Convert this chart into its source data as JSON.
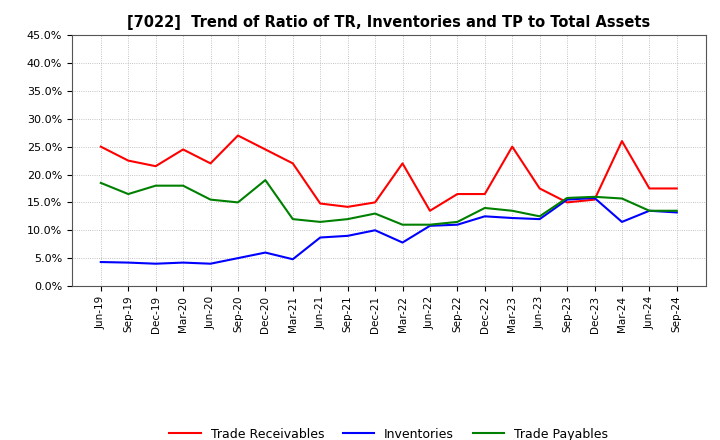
{
  "title": "[7022]  Trend of Ratio of TR, Inventories and TP to Total Assets",
  "x_labels": [
    "Jun-19",
    "Sep-19",
    "Dec-19",
    "Mar-20",
    "Jun-20",
    "Sep-20",
    "Dec-20",
    "Mar-21",
    "Jun-21",
    "Sep-21",
    "Dec-21",
    "Mar-22",
    "Jun-22",
    "Sep-22",
    "Dec-22",
    "Mar-23",
    "Jun-23",
    "Sep-23",
    "Dec-23",
    "Mar-24",
    "Jun-24",
    "Sep-24"
  ],
  "trade_receivables": [
    25.0,
    22.5,
    21.5,
    24.5,
    22.0,
    27.0,
    24.5,
    22.0,
    14.8,
    14.2,
    15.0,
    22.0,
    13.5,
    16.5,
    16.5,
    25.0,
    17.5,
    15.0,
    15.5,
    26.0,
    17.5,
    17.5
  ],
  "inventories": [
    4.3,
    4.2,
    4.0,
    4.2,
    4.0,
    5.0,
    6.0,
    4.8,
    8.7,
    9.0,
    10.0,
    7.8,
    10.8,
    11.0,
    12.5,
    12.2,
    12.0,
    15.5,
    15.8,
    11.5,
    13.5,
    13.2
  ],
  "trade_payables": [
    18.5,
    16.5,
    18.0,
    18.0,
    15.5,
    15.0,
    19.0,
    12.0,
    11.5,
    12.0,
    13.0,
    11.0,
    11.0,
    11.5,
    14.0,
    13.5,
    12.5,
    15.8,
    16.0,
    15.7,
    13.5,
    13.5
  ],
  "tr_color": "#ff0000",
  "inv_color": "#0000ff",
  "tp_color": "#008000",
  "ylim": [
    0.0,
    45.0
  ],
  "yticks": [
    0.0,
    5.0,
    10.0,
    15.0,
    20.0,
    25.0,
    30.0,
    35.0,
    40.0,
    45.0
  ],
  "legend_labels": [
    "Trade Receivables",
    "Inventories",
    "Trade Payables"
  ],
  "background_color": "#ffffff",
  "grid_color": "#b0b0b0"
}
